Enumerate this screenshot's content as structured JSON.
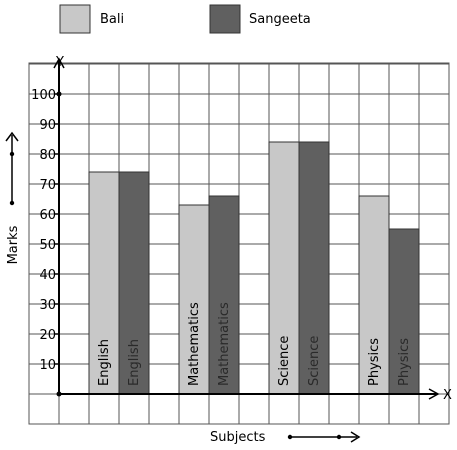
{
  "chart_data": {
    "type": "bar",
    "categories": [
      "English",
      "Mathematics",
      "Science",
      "Physics"
    ],
    "series": [
      {
        "name": "Bali",
        "values": [
          74,
          63,
          84,
          66
        ],
        "color": "#c8c8c8"
      },
      {
        "name": "Sangeeta",
        "values": [
          74,
          66,
          84,
          55
        ],
        "color": "#606060"
      }
    ],
    "bar_labels": [
      [
        "English",
        "English"
      ],
      [
        "Mathematics",
        "Mathematics"
      ],
      [
        "Science",
        "Science"
      ],
      [
        "Physics",
        "Physics"
      ]
    ],
    "ylim": [
      0,
      110
    ],
    "y_ticks": [
      10,
      20,
      30,
      40,
      50,
      60,
      70,
      80,
      90,
      100
    ],
    "y_tick_labels": [
      "10",
      "20",
      "30",
      "40",
      "50",
      "60",
      "70",
      "80",
      "90",
      "100"
    ],
    "xlabel": "Subjects",
    "ylabel": "Marks",
    "x_axis_name": "X",
    "y_axis_name": "Y",
    "grid": true,
    "legend_position": "top"
  }
}
